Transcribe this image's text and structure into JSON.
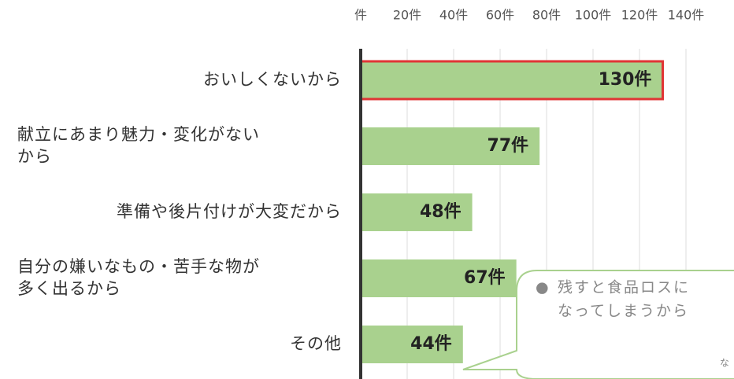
{
  "chart_data": {
    "type": "bar",
    "orientation": "horizontal",
    "categories": [
      [
        "おいしくないから"
      ],
      [
        "献立にあまり魅力・変化がない",
        "から"
      ],
      [
        "準備や後片付けが大変だから"
      ],
      [
        "自分の嫌いなもの・苦手な物が",
        "多く出るから"
      ],
      [
        "その他"
      ]
    ],
    "values": [
      130,
      77,
      48,
      67,
      44
    ],
    "value_labels": [
      "130件",
      "77件",
      "48件",
      "67件",
      "44件"
    ],
    "color": "#a9d18e",
    "highlight_color": "#e03535",
    "xlim": [
      0,
      160
    ],
    "xticks": [
      {
        "value": 0,
        "label": "件"
      },
      {
        "value": 20,
        "label": "20件"
      },
      {
        "value": 40,
        "label": "40件"
      },
      {
        "value": 60,
        "label": "60件"
      },
      {
        "value": 80,
        "label": "80件"
      },
      {
        "value": 100,
        "label": "100件"
      },
      {
        "value": 120,
        "label": "120件"
      },
      {
        "value": 140,
        "label": "140件"
      }
    ],
    "grid": true,
    "annotation": {
      "bullet": "●",
      "lines": [
        "残すと食品ロスに",
        "なってしまうから"
      ],
      "extra": "な"
    }
  }
}
